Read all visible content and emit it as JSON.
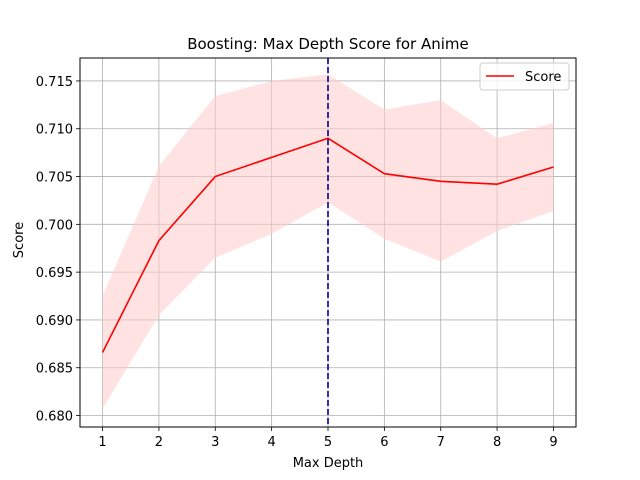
{
  "chart_data": {
    "type": "line",
    "title": "Boosting: Max Depth Score for Anime",
    "xlabel": "Max Depth",
    "ylabel": "Score",
    "x": [
      1,
      2,
      3,
      4,
      5,
      6,
      7,
      8,
      9
    ],
    "xlim": [
      0.6,
      9.4
    ],
    "ylim": [
      0.6788,
      0.7174
    ],
    "yticks": [
      0.68,
      0.685,
      0.69,
      0.695,
      0.7,
      0.705,
      0.71,
      0.715
    ],
    "ytick_labels": [
      "0.680",
      "0.685",
      "0.690",
      "0.695",
      "0.700",
      "0.705",
      "0.710",
      "0.715"
    ],
    "xtick_labels": [
      "1",
      "2",
      "3",
      "4",
      "5",
      "6",
      "7",
      "8",
      "9"
    ],
    "grid": true,
    "series": [
      {
        "name": "Score",
        "color": "#ff0000",
        "values": [
          0.6866,
          0.6983,
          0.705,
          0.707,
          0.709,
          0.7053,
          0.7045,
          0.7042,
          0.706
        ],
        "band_lower": [
          0.6807,
          0.6905,
          0.6965,
          0.699,
          0.7023,
          0.6985,
          0.6961,
          0.6993,
          0.7014
        ],
        "band_upper": [
          0.6925,
          0.7061,
          0.7134,
          0.715,
          0.7157,
          0.712,
          0.713,
          0.709,
          0.7106
        ],
        "band_color": "#ffcccc"
      }
    ],
    "vline": {
      "x": 5,
      "color": "#00008b",
      "style": "dashed"
    },
    "legend": {
      "position": "top-right"
    }
  }
}
